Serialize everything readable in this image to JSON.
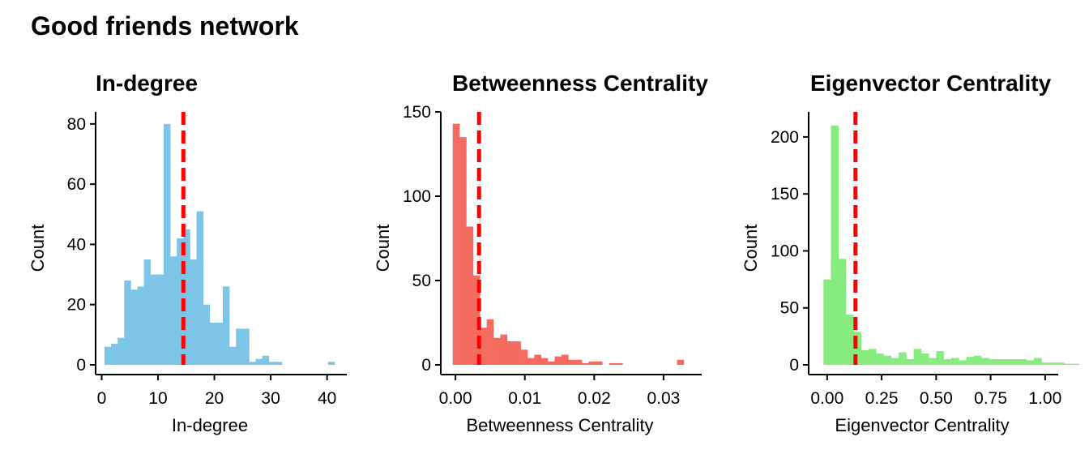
{
  "title": "Good friends network",
  "chart_data": [
    {
      "type": "histogram",
      "title": "In-degree",
      "xlabel": "In-degree",
      "ylabel": "Count",
      "color": "#7cc5e6",
      "mean_line_color": "#ff0000",
      "mean_line_x": 14.5,
      "xlim": [
        -0.5,
        43.5
      ],
      "ylim": [
        0,
        84
      ],
      "xticks": [
        0,
        10,
        20,
        30,
        40
      ],
      "yticks": [
        0,
        20,
        40,
        60,
        80
      ],
      "bin_width": 1.1667,
      "bins_start": 0.5,
      "counts": [
        6,
        7,
        9,
        28,
        25,
        26,
        35,
        30,
        30,
        80,
        36,
        42,
        45,
        35,
        51,
        20,
        14,
        14,
        26,
        6,
        12,
        12,
        1,
        2,
        3,
        1,
        1,
        0,
        0,
        0,
        0,
        0,
        0,
        0,
        1
      ]
    },
    {
      "type": "histogram",
      "title": "Betweenness Centrality",
      "xlabel": "Betweenness Centrality",
      "ylabel": "Count",
      "color": "#f36c5f",
      "mean_line_color": "#ff0000",
      "mean_line_x": 0.0034,
      "xlim": [
        -0.00165,
        0.0355
      ],
      "ylim": [
        0,
        150
      ],
      "xticks": [
        0.0,
        0.01,
        0.02,
        0.03
      ],
      "ytick_values": [
        0,
        50,
        100,
        150
      ],
      "yticks": [
        "0",
        "50",
        "100",
        "150"
      ],
      "xtick_labels": [
        "0.00",
        "0.01",
        "0.02",
        "0.03"
      ],
      "bin_width": 0.00098,
      "bins_start": -0.0004,
      "counts": [
        143,
        135,
        82,
        53,
        22,
        27,
        16,
        18,
        14,
        14,
        9,
        4,
        6,
        4,
        2,
        5,
        6,
        3,
        3,
        1,
        2,
        2,
        0,
        1,
        1,
        0,
        0,
        0,
        0,
        0,
        0,
        0,
        0,
        3
      ]
    },
    {
      "type": "histogram",
      "title": "Eigenvector Centrality",
      "xlabel": "Eigenvector Centrality",
      "ylabel": "Count",
      "color": "#86ec80",
      "mean_line_color": "#ff0000",
      "mean_line_x": 0.13,
      "xlim": [
        -0.07,
        1.06
      ],
      "ylim": [
        0,
        222
      ],
      "xticks": [
        0.0,
        0.25,
        0.5,
        0.75,
        1.0
      ],
      "xtick_labels": [
        "0.00",
        "0.25",
        "0.50",
        "0.75",
        "1.00"
      ],
      "yticks": [
        0,
        50,
        100,
        150,
        200
      ],
      "bin_width": 0.0345,
      "bins_start": -0.017,
      "counts": [
        75,
        210,
        93,
        44,
        29,
        13,
        14,
        10,
        8,
        6,
        11,
        5,
        14,
        10,
        6,
        12,
        5,
        6,
        4,
        7,
        8,
        6,
        5,
        5,
        5,
        5,
        5,
        4,
        6,
        2,
        2,
        2,
        1,
        1,
        0,
        0,
        0,
        0
      ]
    }
  ]
}
